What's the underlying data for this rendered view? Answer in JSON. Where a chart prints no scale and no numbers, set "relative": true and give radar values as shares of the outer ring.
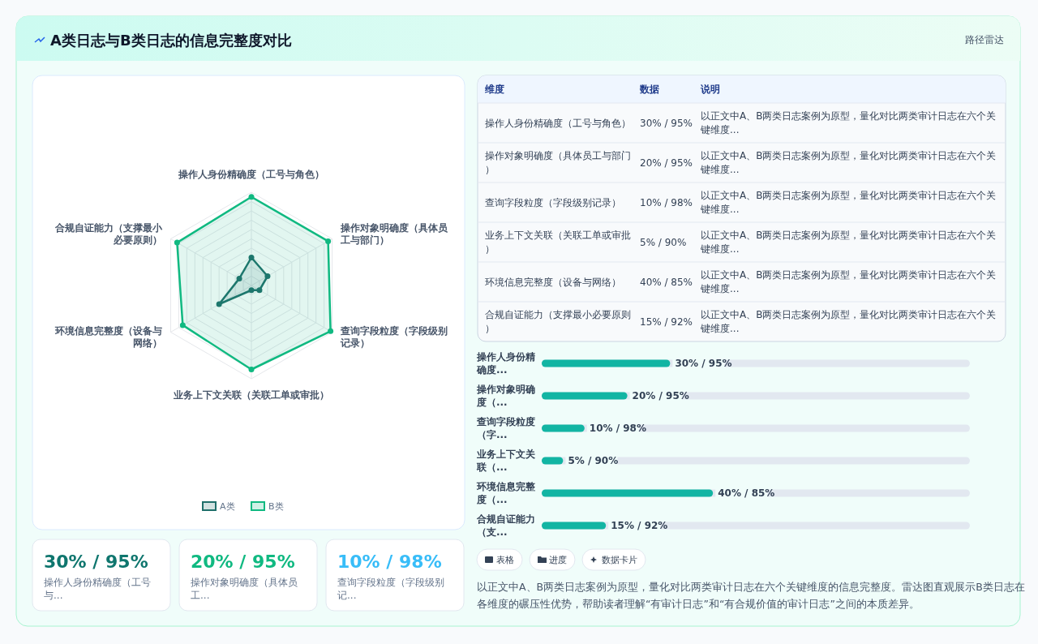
{
  "chart_data": [
    {
      "type": "radar",
      "title": "A类日志与B类日志的信息完整度对比",
      "annotations": [
        "路径雷达"
      ],
      "categories": [
        "操作人身份精确度（工号与角色）",
        "操作对象明确度（具体员工与部门）",
        "查询字段粒度（字段级别记录）",
        "业务上下文关联（关联工单或审批）",
        "环境信息完整度（设备与网络）",
        "合规自证能力（支撑最小必要原则）"
      ],
      "series": [
        {
          "name": "A类",
          "color": "#1f6f6a",
          "values": [
            0.3,
            0.2,
            0.1,
            0.05,
            0.4,
            0.15
          ]
        },
        {
          "name": "B类",
          "color": "#10b981",
          "values": [
            0.95,
            0.95,
            0.98,
            0.9,
            0.85,
            0.92
          ]
        }
      ],
      "relative": true,
      "grid": true,
      "legend": "bottom",
      "marker": "circle"
    },
    {
      "type": "other",
      "annotations": [
        "维度",
        "数据",
        "说明",
        "操作人身份精确度（工号与角色）",
        "30% / 95%",
        "以正文中A、B两类日志案例为原型，量化对比两类审计日志在六个关键维度...",
        "操作对象明确度（具体员工与部门）",
        "20% / 95%",
        "以正文中A、B两类日志案例为原型，量化对比两类审计日志在六个关键维度...",
        "查询字段粒度（字段级别记录）",
        "10% / 98%",
        "以正文中A、B两类日志案例为原型，量化对比两类审计日志在六个关键维度...",
        "业务上下文关联（关联工单或审批）",
        "5% / 90%",
        "以正文中A、B两类日志案例为原型，量化对比两类审计日志在六个关键维度...",
        "环境信息完整度（设备与网络）",
        "40% / 85%",
        "以正文中A、B两类日志案例为原型，量化对比两类审计日志在六个关键维度...",
        "合规自证能力（支撑最小必要原则）",
        "15% / 92%",
        "以正文中A、B两类日志案例为原型，量化对比两类审计日志在六个关键维度..."
      ]
    },
    {
      "type": "bar",
      "orientation": "horizontal",
      "categories": [
        "操作人身份精确度...",
        "操作对象明确度（...",
        "查询字段粒度（字...",
        "业务上下文关联（...",
        "环境信息完整度（...",
        "合规自证能力（支..."
      ],
      "values": [
        30,
        20,
        10,
        5,
        40,
        15
      ],
      "xlim": [
        0,
        100
      ],
      "value_labels": [
        "30% / 95%",
        "20% / 95%",
        "10% / 98%",
        "5% / 90%",
        "40% / 85%",
        "15% / 92%"
      ],
      "color": "#12b5a3"
    },
    {
      "type": "other",
      "annotations": [
        "30% / 95%",
        "操作人身份精确度（工号与...",
        "20% / 95%",
        "操作对象明确度（具体员工...",
        "10% / 98%",
        "查询字段粒度（字段级别记..."
      ],
      "colors": [
        "#0f766e",
        "#10b981",
        "#38bdf8"
      ]
    },
    {
      "type": "other",
      "annotations": [
        "表格",
        "进度",
        "数据卡片",
        "以正文中A、B两类日志案例为原型，量化对比两类审计日志在六个关键维度的信息完整度。雷达图直观展示B类日志在各维度的碾压性优势，帮助读者理解“有审计日志”和“有合规价值的审计日志”之间的本质差异。"
      ]
    }
  ]
}
